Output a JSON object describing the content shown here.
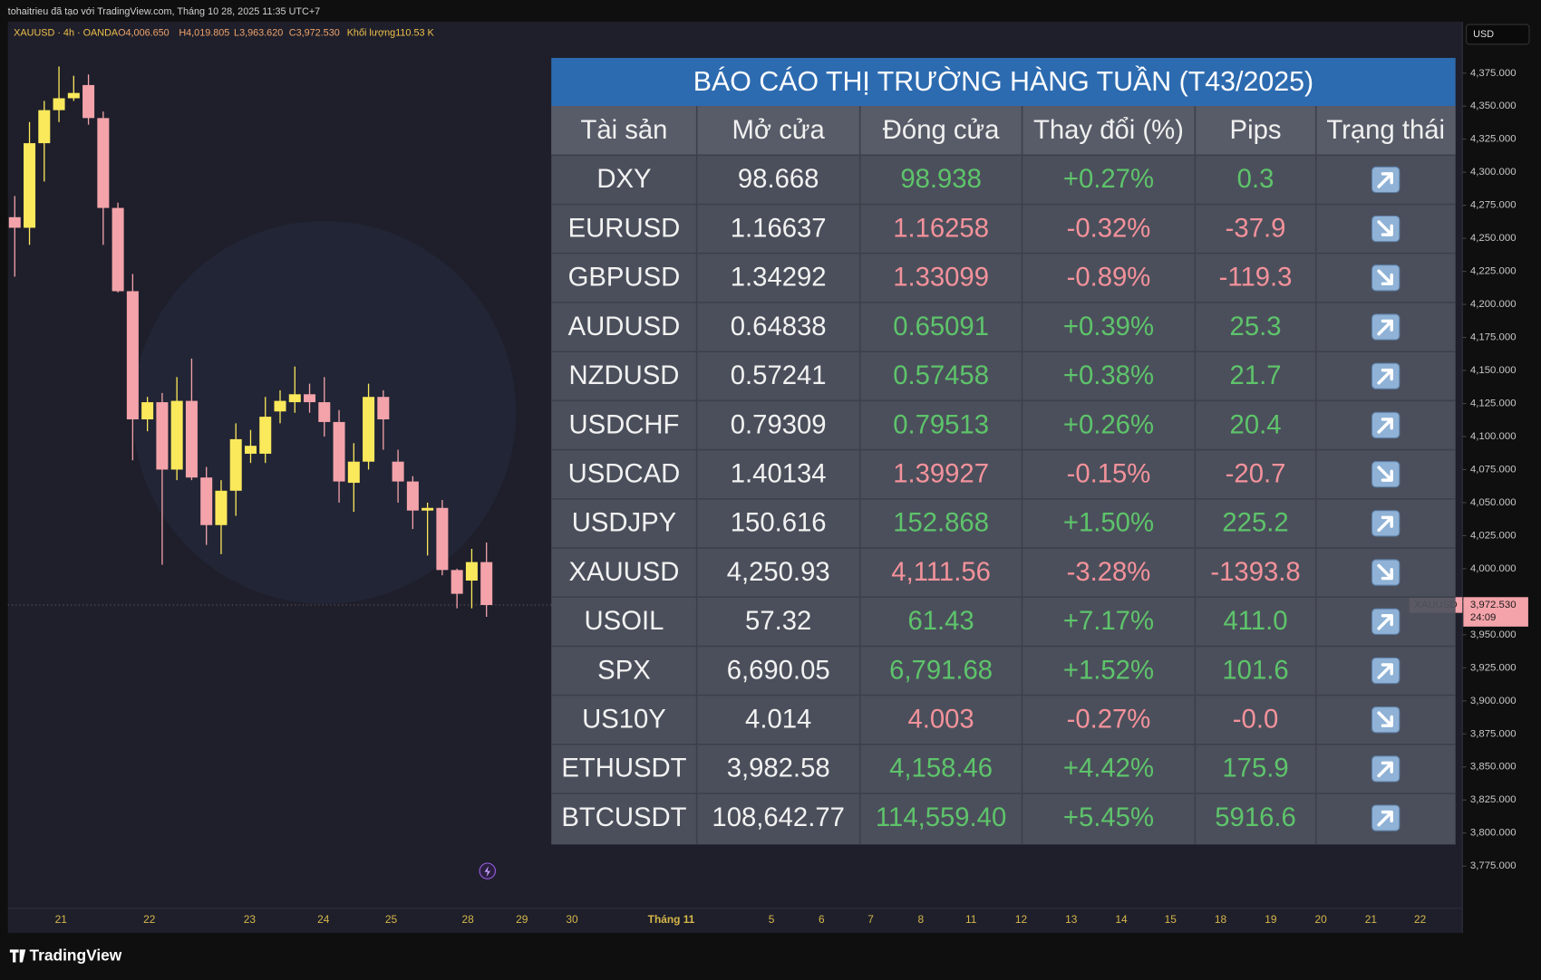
{
  "header": {
    "credit": "tohaitrieu đã tạo với TradingView.com, Tháng 10 28, 2025 11:35 UTC+7",
    "symbol": "XAUUSD · 4h · OANDA",
    "open": "O4,006.650",
    "high": "H4,019.805",
    "low": "L3,963.620",
    "close": "C3,972.530",
    "volume": "Khối lượng110.53 K",
    "currency": "USD"
  },
  "chart": {
    "type": "candlestick",
    "ylim": [
      3743,
      4414
    ],
    "candles": [
      {
        "open": 4266,
        "high": 4282,
        "low": 4221,
        "close": 4258
      },
      {
        "open": 4258,
        "high": 4338,
        "low": 4245,
        "close": 4322
      },
      {
        "open": 4322,
        "high": 4354,
        "low": 4293,
        "close": 4347
      },
      {
        "open": 4347,
        "high": 4380,
        "low": 4338,
        "close": 4356
      },
      {
        "open": 4356,
        "high": 4373,
        "low": 4354,
        "close": 4360
      },
      {
        "open": 4366,
        "high": 4374,
        "low": 4336,
        "close": 4341
      },
      {
        "open": 4341,
        "high": 4346,
        "low": 4245,
        "close": 4273
      },
      {
        "open": 4273,
        "high": 4277,
        "low": 4209,
        "close": 4210
      },
      {
        "open": 4210,
        "high": 4223,
        "low": 4082,
        "close": 4113
      },
      {
        "open": 4113,
        "high": 4130,
        "low": 4104,
        "close": 4126
      },
      {
        "open": 4126,
        "high": 4133,
        "low": 4003,
        "close": 4075
      },
      {
        "open": 4075,
        "high": 4145,
        "low": 4067,
        "close": 4127
      },
      {
        "open": 4127,
        "high": 4159,
        "low": 4067,
        "close": 4069
      },
      {
        "open": 4069,
        "high": 4077,
        "low": 4018,
        "close": 4033
      },
      {
        "open": 4033,
        "high": 4067,
        "low": 4011,
        "close": 4059
      },
      {
        "open": 4059,
        "high": 4110,
        "low": 4040,
        "close": 4098
      },
      {
        "open": 4087,
        "high": 4105,
        "low": 4080,
        "close": 4093
      },
      {
        "open": 4087,
        "high": 4130,
        "low": 4080,
        "close": 4115
      },
      {
        "open": 4119,
        "high": 4135,
        "low": 4110,
        "close": 4127
      },
      {
        "open": 4126,
        "high": 4153,
        "low": 4118,
        "close": 4132
      },
      {
        "open": 4132,
        "high": 4140,
        "low": 4118,
        "close": 4126
      },
      {
        "open": 4126,
        "high": 4145,
        "low": 4100,
        "close": 4111
      },
      {
        "open": 4111,
        "high": 4120,
        "low": 4050,
        "close": 4066
      },
      {
        "open": 4065,
        "high": 4095,
        "low": 4043,
        "close": 4081
      },
      {
        "open": 4081,
        "high": 4140,
        "low": 4075,
        "close": 4130
      },
      {
        "open": 4130,
        "high": 4135,
        "low": 4090,
        "close": 4113
      },
      {
        "open": 4081,
        "high": 4090,
        "low": 4050,
        "close": 4066
      },
      {
        "open": 4066,
        "high": 4070,
        "low": 4030,
        "close": 4044
      },
      {
        "open": 4044,
        "high": 4050,
        "low": 4010,
        "close": 4046
      },
      {
        "open": 4046,
        "high": 4052,
        "low": 3995,
        "close": 3999
      },
      {
        "open": 3999,
        "high": 4000,
        "low": 3970,
        "close": 3981
      },
      {
        "open": 3991,
        "high": 4015,
        "low": 3970,
        "close": 4005
      },
      {
        "open": 4005,
        "high": 4019.8,
        "low": 3963.6,
        "close": 3972.53
      }
    ],
    "yticks": [
      {
        "value": 4375,
        "label": "4,375.000"
      },
      {
        "value": 4350,
        "label": "4,350.000"
      },
      {
        "value": 4325,
        "label": "4,325.000"
      },
      {
        "value": 4300,
        "label": "4,300.000"
      },
      {
        "value": 4275,
        "label": "4,275.000"
      },
      {
        "value": 4250,
        "label": "4,250.000"
      },
      {
        "value": 4225,
        "label": "4,225.000"
      },
      {
        "value": 4200,
        "label": "4,200.000"
      },
      {
        "value": 4175,
        "label": "4,175.000"
      },
      {
        "value": 4150,
        "label": "4,150.000"
      },
      {
        "value": 4125,
        "label": "4,125.000"
      },
      {
        "value": 4100,
        "label": "4,100.000"
      },
      {
        "value": 4075,
        "label": "4,075.000"
      },
      {
        "value": 4050,
        "label": "4,050.000"
      },
      {
        "value": 4025,
        "label": "4,025.000"
      },
      {
        "value": 4000,
        "label": "4,000.000"
      },
      {
        "value": 3975,
        "label": "3,975.000"
      },
      {
        "value": 3950,
        "label": "3,950.000"
      },
      {
        "value": 3925,
        "label": "3,925.000"
      },
      {
        "value": 3900,
        "label": "3,900.000"
      },
      {
        "value": 3875,
        "label": "3,875.000"
      },
      {
        "value": 3850,
        "label": "3,850.000"
      },
      {
        "value": 3825,
        "label": "3,825.000"
      },
      {
        "value": 3800,
        "label": "3,800.000"
      },
      {
        "value": 3775,
        "label": "3,775.000"
      }
    ],
    "last_price": {
      "symbol": "XAUUSD",
      "price": {
        "value": 3972.53,
        "label": "3,972.530"
      },
      "countdown": "24:09"
    },
    "x_labels": [
      "21",
      "22",
      "23",
      "24",
      "25",
      "28",
      "29",
      "30",
      "Tháng 11",
      "5",
      "6",
      "7",
      "8",
      "11",
      "12",
      "13",
      "14",
      "15",
      "18",
      "19",
      "20",
      "21",
      "22"
    ]
  },
  "table": {
    "title": "BÁO CÁO THỊ TRƯỜNG HÀNG TUẦN (T43/2025)",
    "columns": [
      "Tài sản",
      "Mở cửa",
      "Đóng cửa",
      "Thay đổi (%)",
      "Pips",
      "Trạng thái"
    ],
    "rows": [
      [
        "DXY",
        "98.668",
        "98.938",
        "+0.27%",
        "0.3"
      ],
      [
        "EURUSD",
        "1.16637",
        "1.16258",
        "-0.32%",
        "-37.9"
      ],
      [
        "GBPUSD",
        "1.34292",
        "1.33099",
        "-0.89%",
        "-119.3"
      ],
      [
        "AUDUSD",
        "0.64838",
        "0.65091",
        "+0.39%",
        "25.3"
      ],
      [
        "NZDUSD",
        "0.57241",
        "0.57458",
        "+0.38%",
        "21.7"
      ],
      [
        "USDCHF",
        "0.79309",
        "0.79513",
        "+0.26%",
        "20.4"
      ],
      [
        "USDCAD",
        "1.40134",
        "1.39927",
        "-0.15%",
        "-20.7"
      ],
      [
        "USDJPY",
        "150.616",
        "152.868",
        "+1.50%",
        "225.2"
      ],
      [
        "XAUUSD",
        "4,250.93",
        "4,111.56",
        "-3.28%",
        "-1393.8"
      ],
      [
        "USOIL",
        "57.32",
        "61.43",
        "+7.17%",
        "411.0"
      ],
      [
        "SPX",
        "6,690.05",
        "6,791.68",
        "+1.52%",
        "101.6"
      ],
      [
        "US10Y",
        "4.014",
        "4.003",
        "-0.27%",
        "-0.0"
      ],
      [
        "ETHUSDT",
        "3,982.58",
        "4,158.46",
        "+4.42%",
        "175.9"
      ],
      [
        "BTCUSDT",
        "108,642.77",
        "114,559.40",
        "+5.45%",
        "5916.6"
      ]
    ]
  },
  "footer": {
    "brand": "TradingView"
  }
}
